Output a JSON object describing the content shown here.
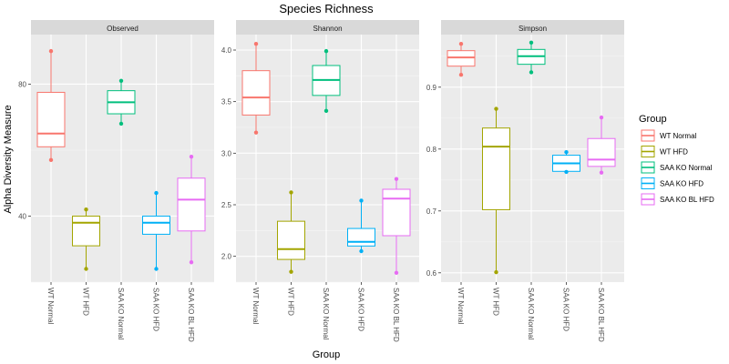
{
  "chart_data": {
    "type": "box",
    "title": "Species Richness",
    "xlabel": "Group",
    "ylabel": "Alpha Diversity Measure",
    "legend": {
      "title": "Group",
      "placement": "right",
      "entries": [
        "WT Normal",
        "WT HFD",
        "SAA KO Normal",
        "SAA KO HFD",
        "SAA KO BL HFD"
      ]
    },
    "categories": [
      "WT Normal",
      "WT HFD",
      "SAA KO Normal",
      "SAA KO HFD",
      "SAA KO BL HFD"
    ],
    "colors": {
      "WT Normal": "#F8766D",
      "WT HFD": "#A3A500",
      "SAA KO Normal": "#00BF7D",
      "SAA KO HFD": "#00B0F6",
      "SAA KO BL HFD": "#E76BF3"
    },
    "grid": true,
    "facets": [
      {
        "name": "Observed",
        "ylim": [
          20,
          95
        ],
        "yticks": [
          40,
          80
        ],
        "ytick_labels": [
          "40",
          "80"
        ],
        "boxes": [
          {
            "group": "WT Normal",
            "min": 57,
            "q1": 61,
            "median": 65,
            "q3": 77.5,
            "max": 90
          },
          {
            "group": "WT HFD",
            "min": 24,
            "q1": 31,
            "median": 38,
            "q3": 40,
            "max": 42
          },
          {
            "group": "SAA KO Normal",
            "min": 68,
            "q1": 71,
            "median": 74.5,
            "q3": 78,
            "max": 81
          },
          {
            "group": "SAA KO HFD",
            "min": 24,
            "q1": 34.5,
            "median": 38,
            "q3": 40,
            "max": 47
          },
          {
            "group": "SAA KO BL HFD",
            "min": 26,
            "q1": 35.5,
            "median": 45,
            "q3": 51.5,
            "max": 58
          }
        ]
      },
      {
        "name": "Shannon",
        "ylim": [
          1.75,
          4.15
        ],
        "yticks": [
          2.0,
          2.5,
          3.0,
          3.5,
          4.0
        ],
        "ytick_labels": [
          "2.0",
          "2.5",
          "3.0",
          "3.5",
          "4.0"
        ],
        "boxes": [
          {
            "group": "WT Normal",
            "min": 3.2,
            "q1": 3.37,
            "median": 3.54,
            "q3": 3.8,
            "max": 4.06
          },
          {
            "group": "WT HFD",
            "min": 1.85,
            "q1": 1.97,
            "median": 2.07,
            "q3": 2.34,
            "max": 2.62
          },
          {
            "group": "SAA KO Normal",
            "min": 3.41,
            "q1": 3.56,
            "median": 3.71,
            "q3": 3.85,
            "max": 3.99
          },
          {
            "group": "SAA KO HFD",
            "min": 2.05,
            "q1": 2.1,
            "median": 2.14,
            "q3": 2.27,
            "max": 2.54
          },
          {
            "group": "SAA KO BL HFD",
            "min": 1.84,
            "q1": 2.2,
            "median": 2.56,
            "q3": 2.65,
            "max": 2.75
          }
        ]
      },
      {
        "name": "Simpson",
        "ylim": [
          0.585,
          0.985
        ],
        "yticks": [
          0.6,
          0.7,
          0.8,
          0.9
        ],
        "ytick_labels": [
          "0.6",
          "0.7",
          "0.8",
          "0.9"
        ],
        "boxes": [
          {
            "group": "WT Normal",
            "min": 0.92,
            "q1": 0.934,
            "median": 0.948,
            "q3": 0.959,
            "max": 0.97
          },
          {
            "group": "WT HFD",
            "min": 0.601,
            "q1": 0.702,
            "median": 0.804,
            "q3": 0.834,
            "max": 0.865
          },
          {
            "group": "SAA KO Normal",
            "min": 0.924,
            "q1": 0.937,
            "median": 0.95,
            "q3": 0.961,
            "max": 0.972
          },
          {
            "group": "SAA KO HFD",
            "min": 0.763,
            "q1": 0.764,
            "median": 0.777,
            "q3": 0.79,
            "max": 0.795
          },
          {
            "group": "SAA KO BL HFD",
            "min": 0.762,
            "q1": 0.772,
            "median": 0.783,
            "q3": 0.817,
            "max": 0.851
          }
        ]
      }
    ]
  }
}
